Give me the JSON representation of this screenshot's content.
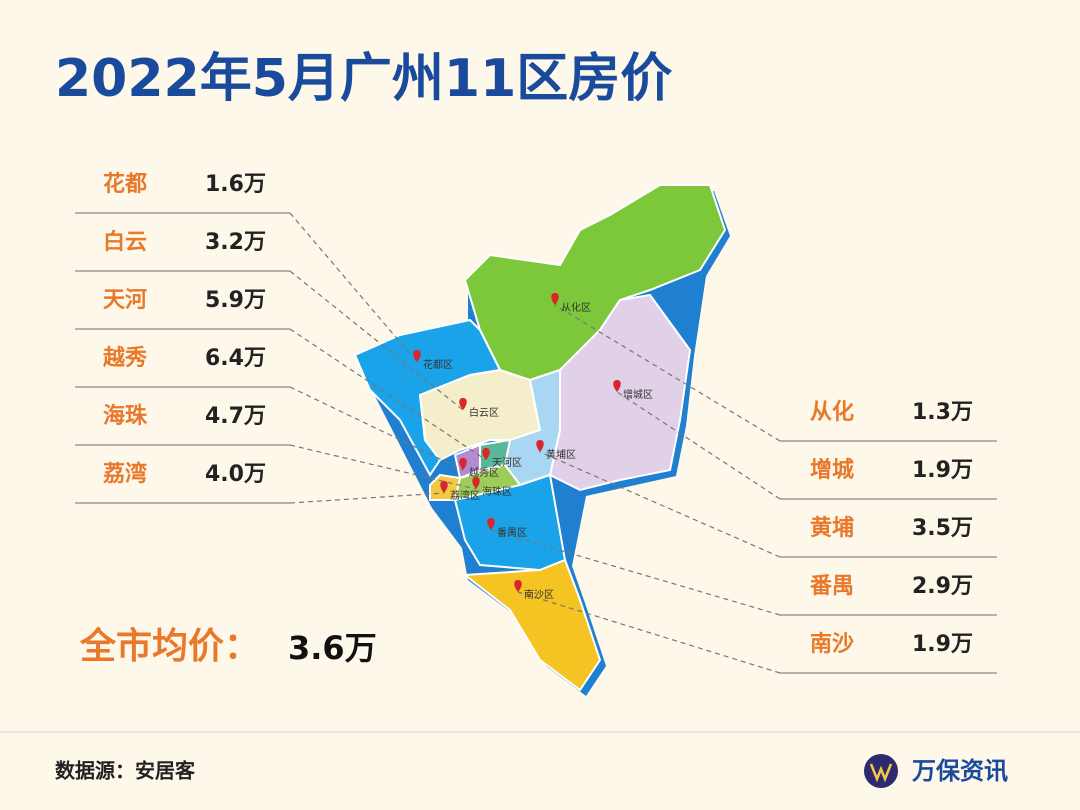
{
  "title": "2022年5月广州11区房价",
  "left_list": [
    {
      "name": "花都",
      "price": "1.6万"
    },
    {
      "name": "白云",
      "price": "3.2万"
    },
    {
      "name": "天河",
      "price": "5.9万"
    },
    {
      "name": "越秀",
      "price": "6.4万"
    },
    {
      "name": "海珠",
      "price": "4.7万"
    },
    {
      "name": "荔湾",
      "price": "4.0万"
    }
  ],
  "right_list": [
    {
      "name": "从化",
      "price": "1.3万"
    },
    {
      "name": "增城",
      "price": "1.9万"
    },
    {
      "name": "黄埔",
      "price": "3.5万"
    },
    {
      "name": "番禺",
      "price": "2.9万"
    },
    {
      "name": "南沙",
      "price": "1.9万"
    }
  ],
  "average": {
    "label": "全市均价：",
    "value": "3.6万"
  },
  "map_labels": [
    "从化区",
    "花都区",
    "增城区",
    "白云区",
    "黄埔区",
    "天河区",
    "越秀区",
    "荔湾区",
    "海珠区",
    "番禺区",
    "南沙区"
  ],
  "footer": {
    "source": "数据源：安居客",
    "brand": "万保资讯"
  }
}
